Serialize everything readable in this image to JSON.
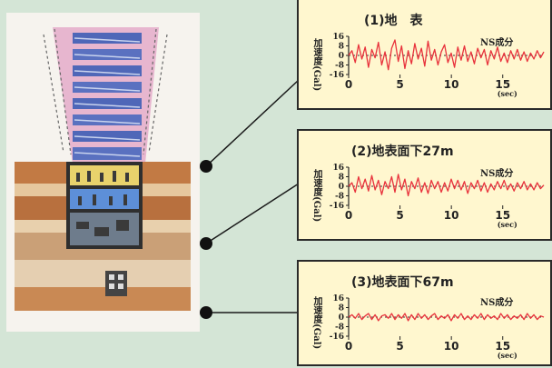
{
  "panels": [
    {
      "title": "(1)地　表",
      "component": "NS成分",
      "ylabel": "加速度(Gal)"
    },
    {
      "title": "(2)地表面下27m",
      "component": "NS成分",
      "ylabel": "加速度(Gal)"
    },
    {
      "title": "(3)地表面下67m",
      "component": "NS成分",
      "ylabel": "加速度(Gal)"
    }
  ],
  "chart_data": [
    {
      "type": "line",
      "title": "(1)地　表",
      "annotation": "NS成分",
      "ylabel": "加速度(Gal)",
      "xlabel": "(sec)",
      "xlim": [
        0,
        19
      ],
      "ylim": [
        -16,
        16
      ],
      "xticks": [
        "0",
        "5",
        "10",
        "15"
      ],
      "yticks": [
        "16",
        "8",
        "0",
        "-8",
        "-16"
      ],
      "series": [
        {
          "color": "#e8323c",
          "values": [
            0,
            4,
            -6,
            9,
            -3,
            7,
            -10,
            5,
            -2,
            11,
            -8,
            3,
            -12,
            6,
            13,
            -5,
            8,
            -11,
            4,
            -7,
            10,
            -3,
            6,
            -9,
            12,
            -4,
            5,
            -8,
            3,
            9,
            -6,
            2,
            -10,
            7,
            -4,
            8,
            -5,
            3,
            -7,
            6,
            -2,
            5,
            -8,
            4,
            -3,
            7,
            -5,
            2,
            -6,
            4,
            -3,
            5,
            -4,
            3,
            -5,
            2,
            -3,
            4,
            -2,
            3
          ]
        }
      ]
    },
    {
      "type": "line",
      "title": "(2)地表面下27m",
      "annotation": "NS成分",
      "ylabel": "加速度(Gal)",
      "xlabel": "(sec)",
      "xlim": [
        0,
        19
      ],
      "ylim": [
        -16,
        16
      ],
      "xticks": [
        "0",
        "5",
        "10",
        "15"
      ],
      "yticks": [
        "16",
        "8",
        "0",
        "-8",
        "-16"
      ],
      "series": [
        {
          "color": "#e8323c",
          "values": [
            0,
            3,
            -5,
            8,
            -2,
            6,
            -4,
            9,
            -3,
            5,
            -7,
            4,
            -2,
            8,
            -5,
            10,
            -3,
            6,
            -8,
            4,
            -2,
            7,
            -5,
            3,
            -6,
            5,
            -2,
            4,
            -5,
            3,
            -4,
            6,
            -2,
            5,
            -3,
            4,
            -6,
            3,
            -2,
            5,
            -4,
            3,
            -5,
            2,
            -3,
            4,
            -2,
            5,
            -3,
            2,
            -4,
            3,
            -2,
            4,
            -3,
            2,
            -3,
            3,
            -2,
            1
          ]
        }
      ]
    },
    {
      "type": "line",
      "title": "(3)地表面下67m",
      "annotation": "NS成分",
      "ylabel": "加速度(Gal)",
      "xlabel": "(sec)",
      "xlim": [
        0,
        19
      ],
      "ylim": [
        -16,
        16
      ],
      "xticks": [
        "0",
        "5",
        "10",
        "15"
      ],
      "yticks": [
        "16",
        "8",
        "0",
        "-8",
        "-16"
      ],
      "series": [
        {
          "color": "#e8323c",
          "values": [
            0,
            2,
            -1,
            3,
            -2,
            1,
            3,
            -2,
            2,
            -3,
            1,
            2,
            -1,
            3,
            -2,
            2,
            -1,
            3,
            -3,
            2,
            -2,
            3,
            -1,
            2,
            -2,
            1,
            3,
            -2,
            1,
            -1,
            2,
            -3,
            2,
            -1,
            3,
            -2,
            1,
            -2,
            2,
            -1,
            3,
            -2,
            2,
            -1,
            1,
            -2,
            3,
            -1,
            2,
            -2,
            1,
            -1,
            2,
            -2,
            3,
            -1,
            2,
            -2,
            1,
            0
          ]
        }
      ]
    }
  ]
}
